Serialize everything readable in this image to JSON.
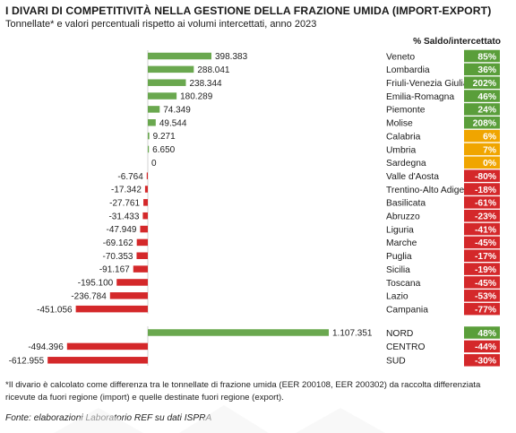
{
  "header": {
    "title": "I DIVARI DI COMPETITIVITÀ NELLA GESTIONE DELLA FRAZIONE UMIDA (IMPORT-EXPORT)",
    "subtitle": "Tonnellate* e valori percentuali rispetto ai volumi intercettati, anno 2023",
    "pct_column_header": "% Saldo/intercettato"
  },
  "footer": {
    "footnote": "*Il divario è calcolato come differenza tra le tonnellate di frazione umida (EER 200108, EER 200302) da raccolta differenziata ricevute da fuori regione (import) e quelle destinate fuori regione (export).",
    "source": "Fonte: elaborazioni Laboratorio REF su dati ISPRA"
  },
  "colors": {
    "positive_bar": "#6aa84f",
    "negative_bar": "#d4282a",
    "badge_green": "#5a9e3a",
    "badge_orange": "#f0a500",
    "badge_red": "#d4282a"
  },
  "chart_data": [
    {
      "type": "bar",
      "orientation": "horizontal",
      "group": "regions",
      "categories": [
        "Veneto",
        "Lombardia",
        "Friuli-Venezia Giulia",
        "Emilia-Romagna",
        "Piemonte",
        "Molise",
        "Calabria",
        "Umbria",
        "Sardegna",
        "Valle d'Aosta",
        "Trentino-Alto Adige",
        "Basilicata",
        "Abruzzo",
        "Liguria",
        "Marche",
        "Puglia",
        "Sicilia",
        "Toscana",
        "Lazio",
        "Campania"
      ],
      "values": [
        398383,
        288041,
        238344,
        180289,
        74349,
        49544,
        9271,
        6650,
        0,
        -6764,
        -17342,
        -27761,
        -31433,
        -47949,
        -69162,
        -70353,
        -91167,
        -195100,
        -236784,
        -451056
      ],
      "value_labels": [
        "398.383",
        "288.041",
        "238.344",
        "180.289",
        "74.349",
        "49.544",
        "9.271",
        "6.650",
        "0",
        "-6.764",
        "-17.342",
        "-27.761",
        "-31.433",
        "-47.949",
        "-69.162",
        "-70.353",
        "-91.167",
        "-195.100",
        "-236.784",
        "-451.056"
      ],
      "pct_saldo_intercettato": [
        "85%",
        "36%",
        "202%",
        "46%",
        "24%",
        "208%",
        "6%",
        "7%",
        "0%",
        "-80%",
        "-18%",
        "-61%",
        "-23%",
        "-41%",
        "-45%",
        "-17%",
        "-19%",
        "-45%",
        "-53%",
        "-77%"
      ],
      "pct_badge_color": [
        "green",
        "green",
        "green",
        "green",
        "green",
        "green",
        "orange",
        "orange",
        "orange",
        "red",
        "red",
        "red",
        "red",
        "red",
        "red",
        "red",
        "red",
        "red",
        "red",
        "red"
      ]
    },
    {
      "type": "bar",
      "orientation": "horizontal",
      "group": "macro-areas",
      "categories": [
        "NORD",
        "CENTRO",
        "SUD"
      ],
      "values": [
        1107351,
        -494396,
        -612955
      ],
      "value_labels": [
        "1.107.351",
        "-494.396",
        "-612.955"
      ],
      "pct_saldo_intercettato": [
        "48%",
        "-44%",
        "-30%"
      ],
      "pct_badge_color": [
        "green",
        "red",
        "red"
      ]
    }
  ]
}
